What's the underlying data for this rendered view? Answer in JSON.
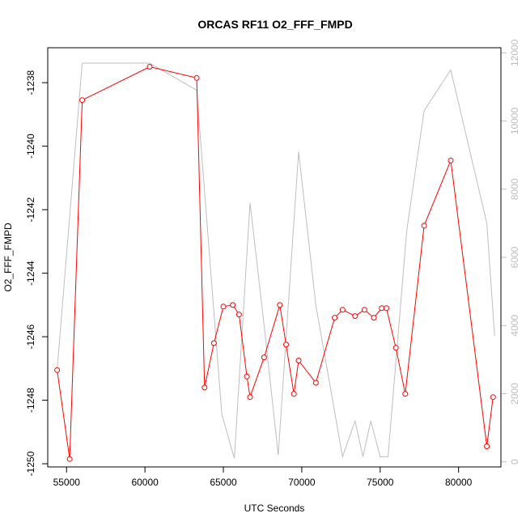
{
  "chart_data": {
    "type": "line",
    "title": "ORCAS RF11 O2_FFF_FMPD",
    "xlabel": "UTC Seconds",
    "ylabel": "O2_FFF_FMPD",
    "xlim": [
      53800,
      82700
    ],
    "ylim": [
      -1250.1,
      -1236.9
    ],
    "y2lim": [
      -150,
      12150
    ],
    "x_ticks": [
      55000,
      60000,
      65000,
      70000,
      75000,
      80000
    ],
    "y_ticks": [
      -1250,
      -1248,
      -1246,
      -1244,
      -1242,
      -1240,
      -1238
    ],
    "y2_ticks": [
      0,
      2000,
      4000,
      6000,
      8000,
      10000,
      12000
    ],
    "series": [
      {
        "color": "#ff0000",
        "marker": "open-circle",
        "axis": "left",
        "x": [
          54400,
          55200,
          56000,
          60300,
          63300,
          63800,
          64400,
          65000,
          65600,
          66000,
          66500,
          66700,
          67600,
          68600,
          69000,
          69500,
          69800,
          70900,
          72100,
          72600,
          73400,
          74000,
          74600,
          75100,
          75400,
          76000,
          76600,
          77800,
          79500,
          81800,
          82200
        ],
        "y": [
          -1247.05,
          -1249.85,
          -1238.55,
          -1237.5,
          -1237.85,
          -1247.6,
          -1246.2,
          -1245.05,
          -1245.0,
          -1245.3,
          -1247.25,
          -1247.9,
          -1246.65,
          -1245.0,
          -1246.25,
          -1247.8,
          -1246.75,
          -1247.45,
          -1245.4,
          -1245.15,
          -1245.35,
          -1245.15,
          -1245.4,
          -1245.1,
          -1245.1,
          -1246.35,
          -1247.8,
          -1242.5,
          -1240.45,
          -1249.45,
          -1247.9
        ]
      },
      {
        "color": "#bebebe",
        "marker": "none",
        "axis": "right",
        "x": [
          54400,
          56000,
          60300,
          63300,
          64900,
          65700,
          66700,
          67600,
          68500,
          69800,
          70900,
          72600,
          73400,
          73900,
          74400,
          75000,
          75500,
          76700,
          77800,
          79500,
          81800,
          82300
        ],
        "y": [
          2700,
          11700,
          11700,
          10900,
          1400,
          100,
          7600,
          4000,
          200,
          9100,
          4600,
          150,
          1200,
          150,
          1200,
          150,
          150,
          6800,
          10300,
          11500,
          7000,
          3700
        ]
      }
    ]
  }
}
